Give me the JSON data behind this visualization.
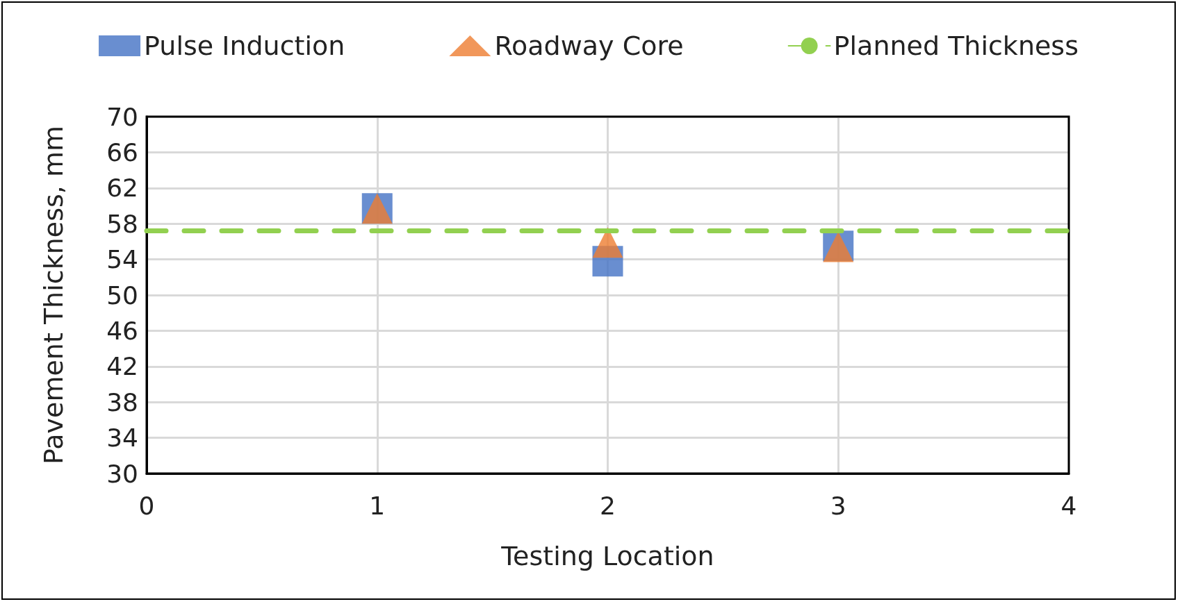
{
  "chart_data": {
    "type": "scatter",
    "xlabel": "Testing Location",
    "ylabel": "Pavement Thickness, mm",
    "x": [
      1,
      2,
      3
    ],
    "series": [
      {
        "name": "Pulse Induction",
        "color": "#4472c4",
        "marker": "square",
        "values": [
          59.7,
          53.8,
          55.5
        ]
      },
      {
        "name": "Roadway Core",
        "color": "#ed7d31",
        "marker": "triangle",
        "values": [
          59.7,
          55.9,
          55.4
        ]
      },
      {
        "name": "Planned Thickness",
        "type": "line",
        "color": "#92d050",
        "marker": "none",
        "line_style": "dashed",
        "x": [
          0,
          4
        ],
        "values": [
          57.2,
          57.2
        ]
      }
    ],
    "xlim": [
      0,
      4
    ],
    "xticks": [
      0,
      1,
      2,
      3,
      4
    ],
    "ylim": [
      30,
      70
    ],
    "yticks": [
      30,
      34,
      38,
      42,
      46,
      50,
      54,
      58,
      62,
      66,
      70
    ],
    "grid": true,
    "legend": "top"
  }
}
